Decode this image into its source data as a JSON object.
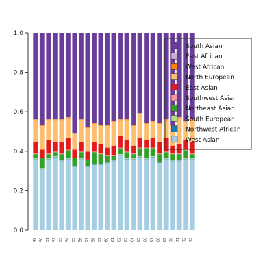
{
  "chart_data": {
    "type": "bar",
    "stacked": true,
    "ylim": [
      0,
      1
    ],
    "yticks": [
      "0.0",
      "0.2",
      "0.4",
      "0.6",
      "0.8",
      "1.0"
    ],
    "categories": [
      "49",
      "50",
      "51",
      "52",
      "53",
      "54",
      "55",
      "56",
      "57",
      "58",
      "59",
      "60",
      "61",
      "62",
      "63",
      "64",
      "65",
      "66",
      "67",
      "68",
      "69",
      "70",
      "71",
      "72",
      "73"
    ],
    "series": [
      {
        "name": "West Asian",
        "color": "#a6cee3",
        "values": [
          0.36,
          0.31,
          0.36,
          0.37,
          0.35,
          0.36,
          0.32,
          0.36,
          0.32,
          0.33,
          0.33,
          0.34,
          0.35,
          0.38,
          0.36,
          0.36,
          0.37,
          0.36,
          0.37,
          0.34,
          0.36,
          0.35,
          0.35,
          0.36,
          0.36
        ]
      },
      {
        "name": "Northwest African",
        "color": "#1f78b4",
        "values": [
          0.002,
          0.002,
          0.002,
          0.002,
          0.002,
          0.002,
          0.002,
          0.002,
          0.002,
          0.002,
          0.002,
          0.002,
          0.002,
          0.002,
          0.002,
          0.002,
          0.002,
          0.002,
          0.002,
          0.002,
          0.002,
          0.002,
          0.002,
          0.002,
          0.002
        ]
      },
      {
        "name": "South European",
        "color": "#b2df8a",
        "values": [
          0.003,
          0.003,
          0.003,
          0.003,
          0.003,
          0.003,
          0.003,
          0.003,
          0.003,
          0.003,
          0.003,
          0.003,
          0.003,
          0.003,
          0.003,
          0.003,
          0.003,
          0.003,
          0.003,
          0.003,
          0.003,
          0.003,
          0.003,
          0.003,
          0.003
        ]
      },
      {
        "name": "Northeast Asian",
        "color": "#33a02c",
        "values": [
          0.02,
          0.05,
          0.02,
          0.02,
          0.03,
          0.04,
          0.04,
          0.03,
          0.03,
          0.06,
          0.05,
          0.03,
          0.02,
          0.03,
          0.03,
          0.02,
          0.04,
          0.05,
          0.04,
          0.04,
          0.03,
          0.03,
          0.03,
          0.04,
          0.02
        ]
      },
      {
        "name": "Southwest Asian",
        "color": "#fb9a99",
        "values": [
          0.003,
          0.003,
          0.003,
          0.003,
          0.003,
          0.003,
          0.003,
          0.003,
          0.003,
          0.003,
          0.003,
          0.003,
          0.003,
          0.003,
          0.003,
          0.003,
          0.003,
          0.003,
          0.003,
          0.003,
          0.003,
          0.003,
          0.003,
          0.003,
          0.003
        ]
      },
      {
        "name": "East Asian",
        "color": "#e31a1c",
        "values": [
          0.06,
          0.04,
          0.07,
          0.05,
          0.06,
          0.06,
          0.04,
          0.05,
          0.04,
          0.05,
          0.05,
          0.04,
          0.05,
          0.06,
          0.06,
          0.04,
          0.05,
          0.04,
          0.05,
          0.06,
          0.07,
          0.04,
          0.05,
          0.05,
          0.06
        ]
      },
      {
        "name": "North European",
        "color": "#fdbf6f",
        "values": [
          0.11,
          0.12,
          0.1,
          0.11,
          0.11,
          0.1,
          0.08,
          0.11,
          0.12,
          0.09,
          0.09,
          0.11,
          0.12,
          0.08,
          0.1,
          0.1,
          0.12,
          0.08,
          0.08,
          0.09,
          0.09,
          0.1,
          0.13,
          0.09,
          0.11
        ]
      },
      {
        "name": "West African",
        "color": "#ff7f00",
        "values": [
          0.003,
          0.003,
          0.003,
          0.003,
          0.003,
          0.003,
          0.003,
          0.003,
          0.003,
          0.003,
          0.003,
          0.003,
          0.003,
          0.003,
          0.003,
          0.003,
          0.003,
          0.003,
          0.003,
          0.003,
          0.003,
          0.003,
          0.003,
          0.003,
          0.003
        ]
      },
      {
        "name": "East African",
        "color": "#cab2d6",
        "values": [
          0.002,
          0.002,
          0.002,
          0.002,
          0.002,
          0.002,
          0.002,
          0.002,
          0.002,
          0.002,
          0.002,
          0.002,
          0.002,
          0.002,
          0.002,
          0.002,
          0.002,
          0.002,
          0.002,
          0.002,
          0.002,
          0.002,
          0.002,
          0.002,
          0.002
        ]
      },
      {
        "name": "South Asian",
        "color": "#6a3d9a",
        "values": [
          0.44,
          0.47,
          0.44,
          0.44,
          0.44,
          0.43,
          0.51,
          0.44,
          0.45,
          0.46,
          0.47,
          0.47,
          0.45,
          0.44,
          0.44,
          0.47,
          0.41,
          0.46,
          0.45,
          0.46,
          0.44,
          0.47,
          0.43,
          0.45,
          0.44
        ]
      }
    ],
    "legend": {
      "position": "top-right",
      "entries": [
        "South Asian",
        "East African",
        "West African",
        "North European",
        "East Asian",
        "Southwest Asian",
        "Northeast Asian",
        "South European",
        "Northwest African",
        "West Asian"
      ]
    }
  }
}
